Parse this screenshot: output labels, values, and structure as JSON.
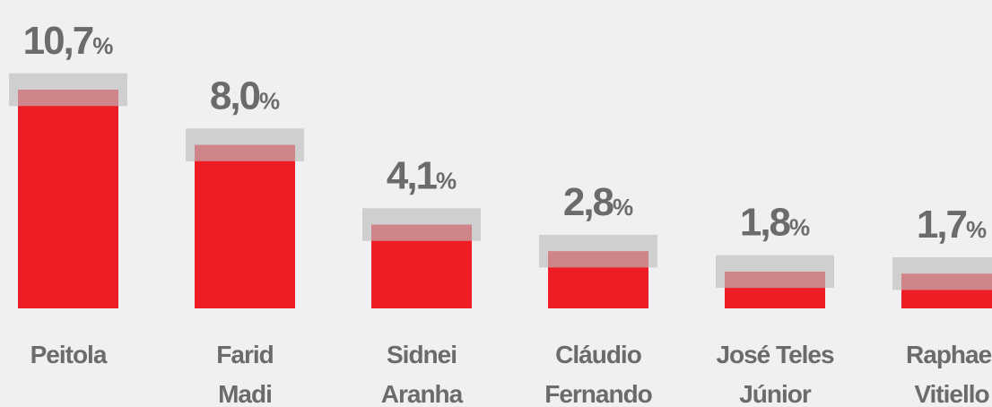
{
  "chart_data": {
    "type": "bar",
    "categories": [
      [
        "Peitola"
      ],
      [
        "Farid",
        "Madi"
      ],
      [
        "Sidnei",
        "Aranha"
      ],
      [
        "Cláudio",
        "Fernando"
      ],
      [
        "José Teles",
        "Júnior"
      ],
      [
        "Raphael",
        "Vitiello"
      ]
    ],
    "values": [
      10.7,
      8.0,
      4.1,
      2.8,
      1.8,
      1.7
    ],
    "value_labels": [
      "10,7",
      "8,0",
      "4,1",
      "2,8",
      "1,8",
      "1,7"
    ],
    "unit": "%",
    "margin": 0.8,
    "color": "#ee1c25",
    "margin_color": "#bdbdbd",
    "ylim": [
      0,
      15
    ]
  }
}
